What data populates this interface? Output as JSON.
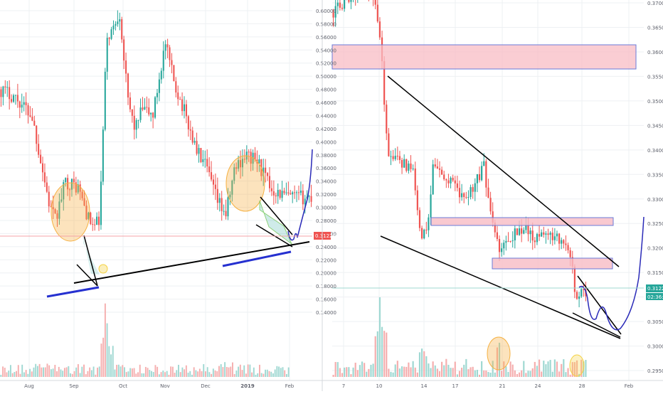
{
  "colors": {
    "up": "#26a69a",
    "down": "#ef5350",
    "grid": "#eef0f3",
    "axis_text": "#5d606b",
    "price_tag": "#ef5350",
    "price_tag_right": "#26a69a",
    "trendline": "#000000",
    "forecast": "#2a2ab8",
    "support_blue": "#2530d0",
    "zone_fill": "#f8bcc4",
    "zone_stroke": "#6a7bd8",
    "orange_circle": "#f5b041",
    "yellow_circle": "#f4d03f"
  },
  "chart_data": [
    {
      "type": "line",
      "title": "",
      "xlabel": "",
      "ylabel": "",
      "x_ticks": [
        "Aug",
        "Sep",
        "Oct",
        "Nov",
        "Dec",
        "2019",
        "Feb"
      ],
      "y_ticks": [
        "0.60000",
        "0.58000",
        "0.56000",
        "0.54000",
        "0.52000",
        "0.50000",
        "0.48000",
        "0.46000",
        "0.44000",
        "0.42000",
        "0.40000",
        "0.38000",
        "0.36000",
        "0.34000",
        "0.32000",
        "0.30000",
        "0.28000",
        "0.26000",
        "0.24000",
        "0.22000",
        "0.20000",
        "0.18000",
        "0.16000",
        "0.14000"
      ],
      "ylim": [
        0.13,
        0.615
      ],
      "current_price_label": "0.31220",
      "series": [
        {
          "x": [
            "Jul 1",
            "Jul 15",
            "Aug 1",
            "Aug 10",
            "Aug 14",
            "Aug 20",
            "Aug 25",
            "Sep 1",
            "Sep 8",
            "Sep 12",
            "Sep 18",
            "Sep 22",
            "Oct 1",
            "Oct 10",
            "Oct 20",
            "Nov 1",
            "Nov 10",
            "Nov 20",
            "Dec 1",
            "Dec 7",
            "Dec 14",
            "Dec 20",
            "Jan 1",
            "Jan 10",
            "Jan 20",
            "Jan 26",
            "Feb 1",
            "Feb 8"
          ],
          "values": [
            0.48,
            0.46,
            0.44,
            0.3,
            0.28,
            0.34,
            0.33,
            0.29,
            0.27,
            0.28,
            0.58,
            0.56,
            0.6,
            0.45,
            0.43,
            0.55,
            0.47,
            0.38,
            0.36,
            0.3,
            0.29,
            0.35,
            0.38,
            0.36,
            0.33,
            0.31,
            0.33,
            0.43
          ]
        }
      ],
      "volume": [
        10,
        12,
        8,
        9,
        14,
        22,
        10,
        18,
        30,
        40,
        25,
        12,
        9,
        10,
        8,
        12,
        7,
        9,
        11,
        18,
        12,
        9,
        10,
        8,
        9,
        7,
        6,
        4
      ]
    },
    {
      "type": "line",
      "title": "",
      "xlabel": "",
      "ylabel": "",
      "x_ticks": [
        "7",
        "10",
        "14",
        "17",
        "21",
        "24",
        "28",
        "Feb"
      ],
      "y_ticks": [
        "0.37000",
        "0.36500",
        "0.36000",
        "0.35500",
        "0.35000",
        "0.34500",
        "0.34000",
        "0.33500",
        "0.33000",
        "0.32500",
        "0.32000",
        "0.31500",
        "0.31000",
        "0.30500",
        "0.30000",
        "0.29500"
      ],
      "ylim": [
        0.2925,
        0.3715
      ],
      "current_price_label": "0.31220",
      "timer_label": "02:36:16",
      "series": [
        {
          "x": [
            "Jan 6",
            "Jan 8",
            "Jan 10",
            "Jan 10.5",
            "Jan 11",
            "Jan 13",
            "Jan 14",
            "Jan 15",
            "Jan 17",
            "Jan 19",
            "Jan 20",
            "Jan 21",
            "Jan 23",
            "Jan 25",
            "Jan 26",
            "Jan 27",
            "Jan 28",
            "Jan 29",
            "Jan 30",
            "Jan 31",
            "Feb 1",
            "Feb 2"
          ],
          "values": [
            0.365,
            0.372,
            0.368,
            0.355,
            0.34,
            0.338,
            0.321,
            0.334,
            0.333,
            0.338,
            0.325,
            0.319,
            0.323,
            0.319,
            0.318,
            0.312,
            0.313,
            0.31,
            0.307,
            0.309,
            0.316,
            0.326
          ]
        }
      ],
      "volume": [
        6,
        8,
        30,
        22,
        10,
        7,
        9,
        8,
        6,
        10,
        24,
        7,
        9,
        6,
        8,
        12,
        5,
        6,
        4,
        3,
        3,
        3
      ]
    }
  ]
}
